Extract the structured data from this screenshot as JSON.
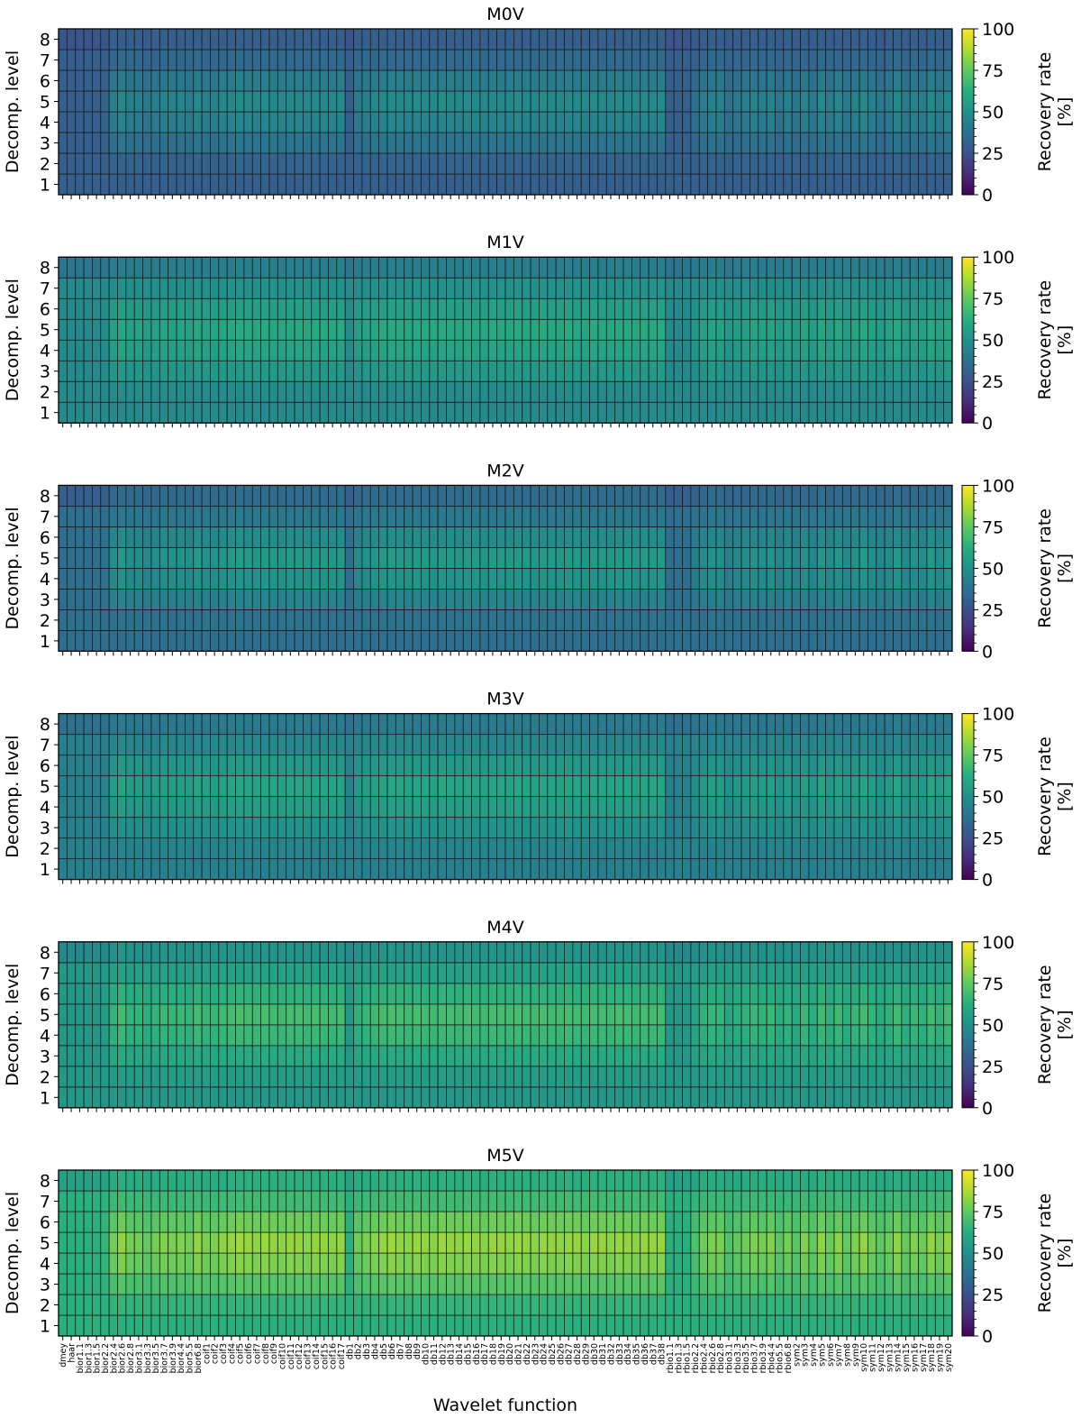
{
  "chart_data": {
    "type": "heatmap",
    "xlabel": "Wavelet function",
    "ylabel": "Decomp. level",
    "colorbar": {
      "label": "Recovery rate [%]",
      "label_lines": [
        "Recovery rate",
        "[%]"
      ],
      "range": [
        0,
        100
      ],
      "ticks": [
        "0",
        "25",
        "50",
        "75",
        "100"
      ],
      "colormap": "viridis"
    },
    "levels": [
      "1",
      "2",
      "3",
      "4",
      "5",
      "6",
      "7",
      "8"
    ],
    "wavelets": [
      "dmey",
      "haar",
      "bior1.1",
      "bior1.3",
      "bior1.5",
      "bior2.2",
      "bior2.4",
      "bior2.6",
      "bior2.8",
      "bior3.1",
      "bior3.3",
      "bior3.5",
      "bior3.7",
      "bior3.9",
      "bior4.4",
      "bior5.5",
      "bior6.8",
      "coif1",
      "coif2",
      "coif3",
      "coif4",
      "coif5",
      "coif6",
      "coif7",
      "coif8",
      "coif9",
      "coif10",
      "coif11",
      "coif12",
      "coif13",
      "coif14",
      "coif15",
      "coif16",
      "coif17",
      "db1",
      "db2",
      "db3",
      "db4",
      "db5",
      "db6",
      "db7",
      "db8",
      "db9",
      "db10",
      "db11",
      "db12",
      "db13",
      "db14",
      "db15",
      "db16",
      "db17",
      "db18",
      "db19",
      "db20",
      "db21",
      "db22",
      "db23",
      "db24",
      "db25",
      "db26",
      "db27",
      "db28",
      "db29",
      "db30",
      "db31",
      "db32",
      "db33",
      "db34",
      "db35",
      "db36",
      "db37",
      "db38",
      "rbio1.1",
      "rbio1.3",
      "rbio1.5",
      "rbio2.2",
      "rbio2.4",
      "rbio2.6",
      "rbio2.8",
      "rbio3.1",
      "rbio3.3",
      "rbio3.5",
      "rbio3.7",
      "rbio3.9",
      "rbio4.4",
      "rbio5.5",
      "rbio6.8",
      "sym2",
      "sym3",
      "sym4",
      "sym5",
      "sym6",
      "sym7",
      "sym8",
      "sym9",
      "sym10",
      "sym11",
      "sym12",
      "sym13",
      "sym14",
      "sym15",
      "sym16",
      "sym17",
      "sym18",
      "sym19",
      "sym20"
    ],
    "panels": [
      {
        "title": "M0V",
        "base": 30,
        "bump": 24,
        "high": 26
      },
      {
        "title": "M1V",
        "base": 47,
        "bump": 18,
        "high": 39
      },
      {
        "title": "M2V",
        "base": 36,
        "bump": 24,
        "high": 30
      },
      {
        "title": "M3V",
        "base": 43,
        "bump": 21,
        "high": 37
      },
      {
        "title": "M4V",
        "base": 53,
        "bump": 22,
        "high": 47
      },
      {
        "title": "M5V",
        "base": 63,
        "bump": 28,
        "high": 57
      }
    ],
    "level_profile": [
      0,
      0.12,
      0.5,
      0.85,
      1.0,
      0.7,
      0.25,
      0.05
    ],
    "wavelet_profile": [
      0.0,
      0.0,
      0.0,
      0.0,
      0.0,
      0.1,
      0.55,
      0.72,
      0.55,
      0.55,
      0.45,
      0.55,
      0.62,
      0.58,
      0.62,
      0.55,
      0.72,
      0.6,
      0.6,
      0.68,
      0.72,
      0.78,
      0.74,
      0.7,
      0.75,
      0.72,
      0.68,
      0.74,
      0.72,
      0.68,
      0.74,
      0.72,
      0.68,
      0.74,
      0.0,
      0.5,
      0.6,
      0.68,
      0.72,
      0.78,
      0.72,
      0.7,
      0.75,
      0.72,
      0.68,
      0.76,
      0.72,
      0.7,
      0.75,
      0.72,
      0.68,
      0.74,
      0.72,
      0.7,
      0.76,
      0.72,
      0.68,
      0.74,
      0.72,
      0.7,
      0.74,
      0.72,
      0.68,
      0.74,
      0.72,
      0.7,
      0.75,
      0.72,
      0.68,
      0.74,
      0.72,
      0.74,
      0.0,
      0.0,
      0.0,
      0.3,
      0.52,
      0.6,
      0.58,
      0.32,
      0.45,
      0.52,
      0.6,
      0.55,
      0.62,
      0.4,
      0.55,
      0.38,
      0.62,
      0.45,
      0.7,
      0.5,
      0.68,
      0.45,
      0.6,
      0.72,
      0.55,
      0.42,
      0.52,
      0.7,
      0.48,
      0.62,
      0.5,
      0.72,
      0.56,
      0.72
    ]
  }
}
